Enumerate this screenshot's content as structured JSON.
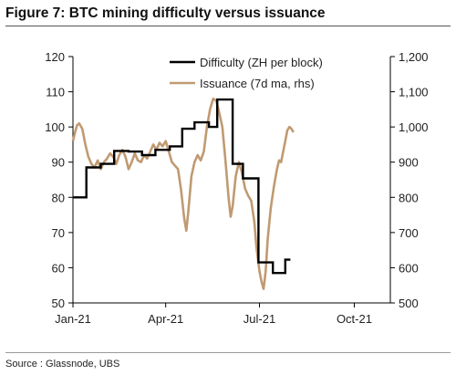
{
  "title": "Figure 7: BTC mining difficulty versus issuance",
  "source": "Source : Glassnode, UBS",
  "chart_data": {
    "type": "line",
    "title": "Figure 7: BTC mining difficulty versus issuance",
    "xlim": [
      "2021-01-01",
      "2021-11-05"
    ],
    "x_ticks": [
      {
        "label": "Jan-21",
        "date": "2021-01-01"
      },
      {
        "label": "Apr-21",
        "date": "2021-04-01"
      },
      {
        "label": "Jul-21",
        "date": "2021-07-01"
      },
      {
        "label": "Oct-21",
        "date": "2021-10-01"
      }
    ],
    "y_left": {
      "lim": [
        50,
        120
      ],
      "ticks": [
        "50",
        "60",
        "70",
        "80",
        "90",
        "100",
        "110",
        "120"
      ]
    },
    "y_right": {
      "lim": [
        500,
        1200
      ],
      "ticks": [
        "500",
        "600",
        "700",
        "800",
        "900",
        "1,000",
        "1,100",
        "1,200"
      ]
    },
    "legend_position": "top-right",
    "grid": false,
    "series": [
      {
        "name": "Difficulty (ZH per block)",
        "axis": "left",
        "color": "#000000",
        "step": true,
        "points": [
          [
            "2021-01-01",
            80.0
          ],
          [
            "2021-01-14",
            88.5
          ],
          [
            "2021-01-28",
            89.5
          ],
          [
            "2021-02-10",
            93.2
          ],
          [
            "2021-02-24",
            93.0
          ],
          [
            "2021-03-09",
            92.0
          ],
          [
            "2021-03-22",
            93.5
          ],
          [
            "2021-04-05",
            94.5
          ],
          [
            "2021-04-17",
            99.5
          ],
          [
            "2021-04-29",
            101.3
          ],
          [
            "2021-05-13",
            100.0
          ],
          [
            "2021-05-21",
            107.8
          ],
          [
            "2021-06-05",
            89.5
          ],
          [
            "2021-06-15",
            85.4
          ],
          [
            "2021-06-30",
            61.5
          ],
          [
            "2021-07-14",
            58.5
          ],
          [
            "2021-07-26",
            62.3
          ],
          [
            "2021-07-31",
            62.3
          ]
        ]
      },
      {
        "name": "Issuance (7d ma, rhs)",
        "axis": "right",
        "color": "#c09a72",
        "step": false,
        "points": [
          [
            "2021-01-01",
            960
          ],
          [
            "2021-01-03",
            985
          ],
          [
            "2021-01-05",
            1005
          ],
          [
            "2021-01-07",
            1010
          ],
          [
            "2021-01-10",
            995
          ],
          [
            "2021-01-13",
            950
          ],
          [
            "2021-01-16",
            915
          ],
          [
            "2021-01-19",
            895
          ],
          [
            "2021-01-22",
            885
          ],
          [
            "2021-01-25",
            905
          ],
          [
            "2021-01-28",
            880
          ],
          [
            "2021-01-31",
            900
          ],
          [
            "2021-02-03",
            910
          ],
          [
            "2021-02-06",
            925
          ],
          [
            "2021-02-09",
            915
          ],
          [
            "2021-02-12",
            895
          ],
          [
            "2021-02-15",
            920
          ],
          [
            "2021-02-18",
            935
          ],
          [
            "2021-02-21",
            915
          ],
          [
            "2021-02-24",
            880
          ],
          [
            "2021-02-27",
            900
          ],
          [
            "2021-03-02",
            925
          ],
          [
            "2021-03-05",
            905
          ],
          [
            "2021-03-08",
            900
          ],
          [
            "2021-03-11",
            920
          ],
          [
            "2021-03-14",
            910
          ],
          [
            "2021-03-17",
            930
          ],
          [
            "2021-03-20",
            950
          ],
          [
            "2021-03-23",
            935
          ],
          [
            "2021-03-26",
            955
          ],
          [
            "2021-03-29",
            945
          ],
          [
            "2021-04-01",
            960
          ],
          [
            "2021-04-04",
            930
          ],
          [
            "2021-04-07",
            900
          ],
          [
            "2021-04-10",
            890
          ],
          [
            "2021-04-13",
            880
          ],
          [
            "2021-04-16",
            820
          ],
          [
            "2021-04-19",
            740
          ],
          [
            "2021-04-21",
            705
          ],
          [
            "2021-04-23",
            760
          ],
          [
            "2021-04-26",
            860
          ],
          [
            "2021-04-29",
            900
          ],
          [
            "2021-05-02",
            920
          ],
          [
            "2021-05-05",
            905
          ],
          [
            "2021-05-08",
            930
          ],
          [
            "2021-05-11",
            1000
          ],
          [
            "2021-05-14",
            1050
          ],
          [
            "2021-05-17",
            1080
          ],
          [
            "2021-05-20",
            1075
          ],
          [
            "2021-05-23",
            1040
          ],
          [
            "2021-05-26",
            1000
          ],
          [
            "2021-05-29",
            905
          ],
          [
            "2021-06-01",
            800
          ],
          [
            "2021-06-03",
            745
          ],
          [
            "2021-06-05",
            775
          ],
          [
            "2021-06-08",
            860
          ],
          [
            "2021-06-11",
            900
          ],
          [
            "2021-06-14",
            870
          ],
          [
            "2021-06-17",
            825
          ],
          [
            "2021-06-20",
            805
          ],
          [
            "2021-06-23",
            790
          ],
          [
            "2021-06-26",
            730
          ],
          [
            "2021-06-28",
            660
          ],
          [
            "2021-07-01",
            590
          ],
          [
            "2021-07-03",
            560
          ],
          [
            "2021-07-05",
            540
          ],
          [
            "2021-07-07",
            590
          ],
          [
            "2021-07-09",
            680
          ],
          [
            "2021-07-12",
            770
          ],
          [
            "2021-07-15",
            830
          ],
          [
            "2021-07-18",
            880
          ],
          [
            "2021-07-20",
            905
          ],
          [
            "2021-07-22",
            900
          ],
          [
            "2021-07-24",
            930
          ],
          [
            "2021-07-26",
            960
          ],
          [
            "2021-07-28",
            990
          ],
          [
            "2021-07-30",
            1000
          ],
          [
            "2021-08-01",
            995
          ],
          [
            "2021-08-03",
            985
          ]
        ]
      }
    ]
  }
}
